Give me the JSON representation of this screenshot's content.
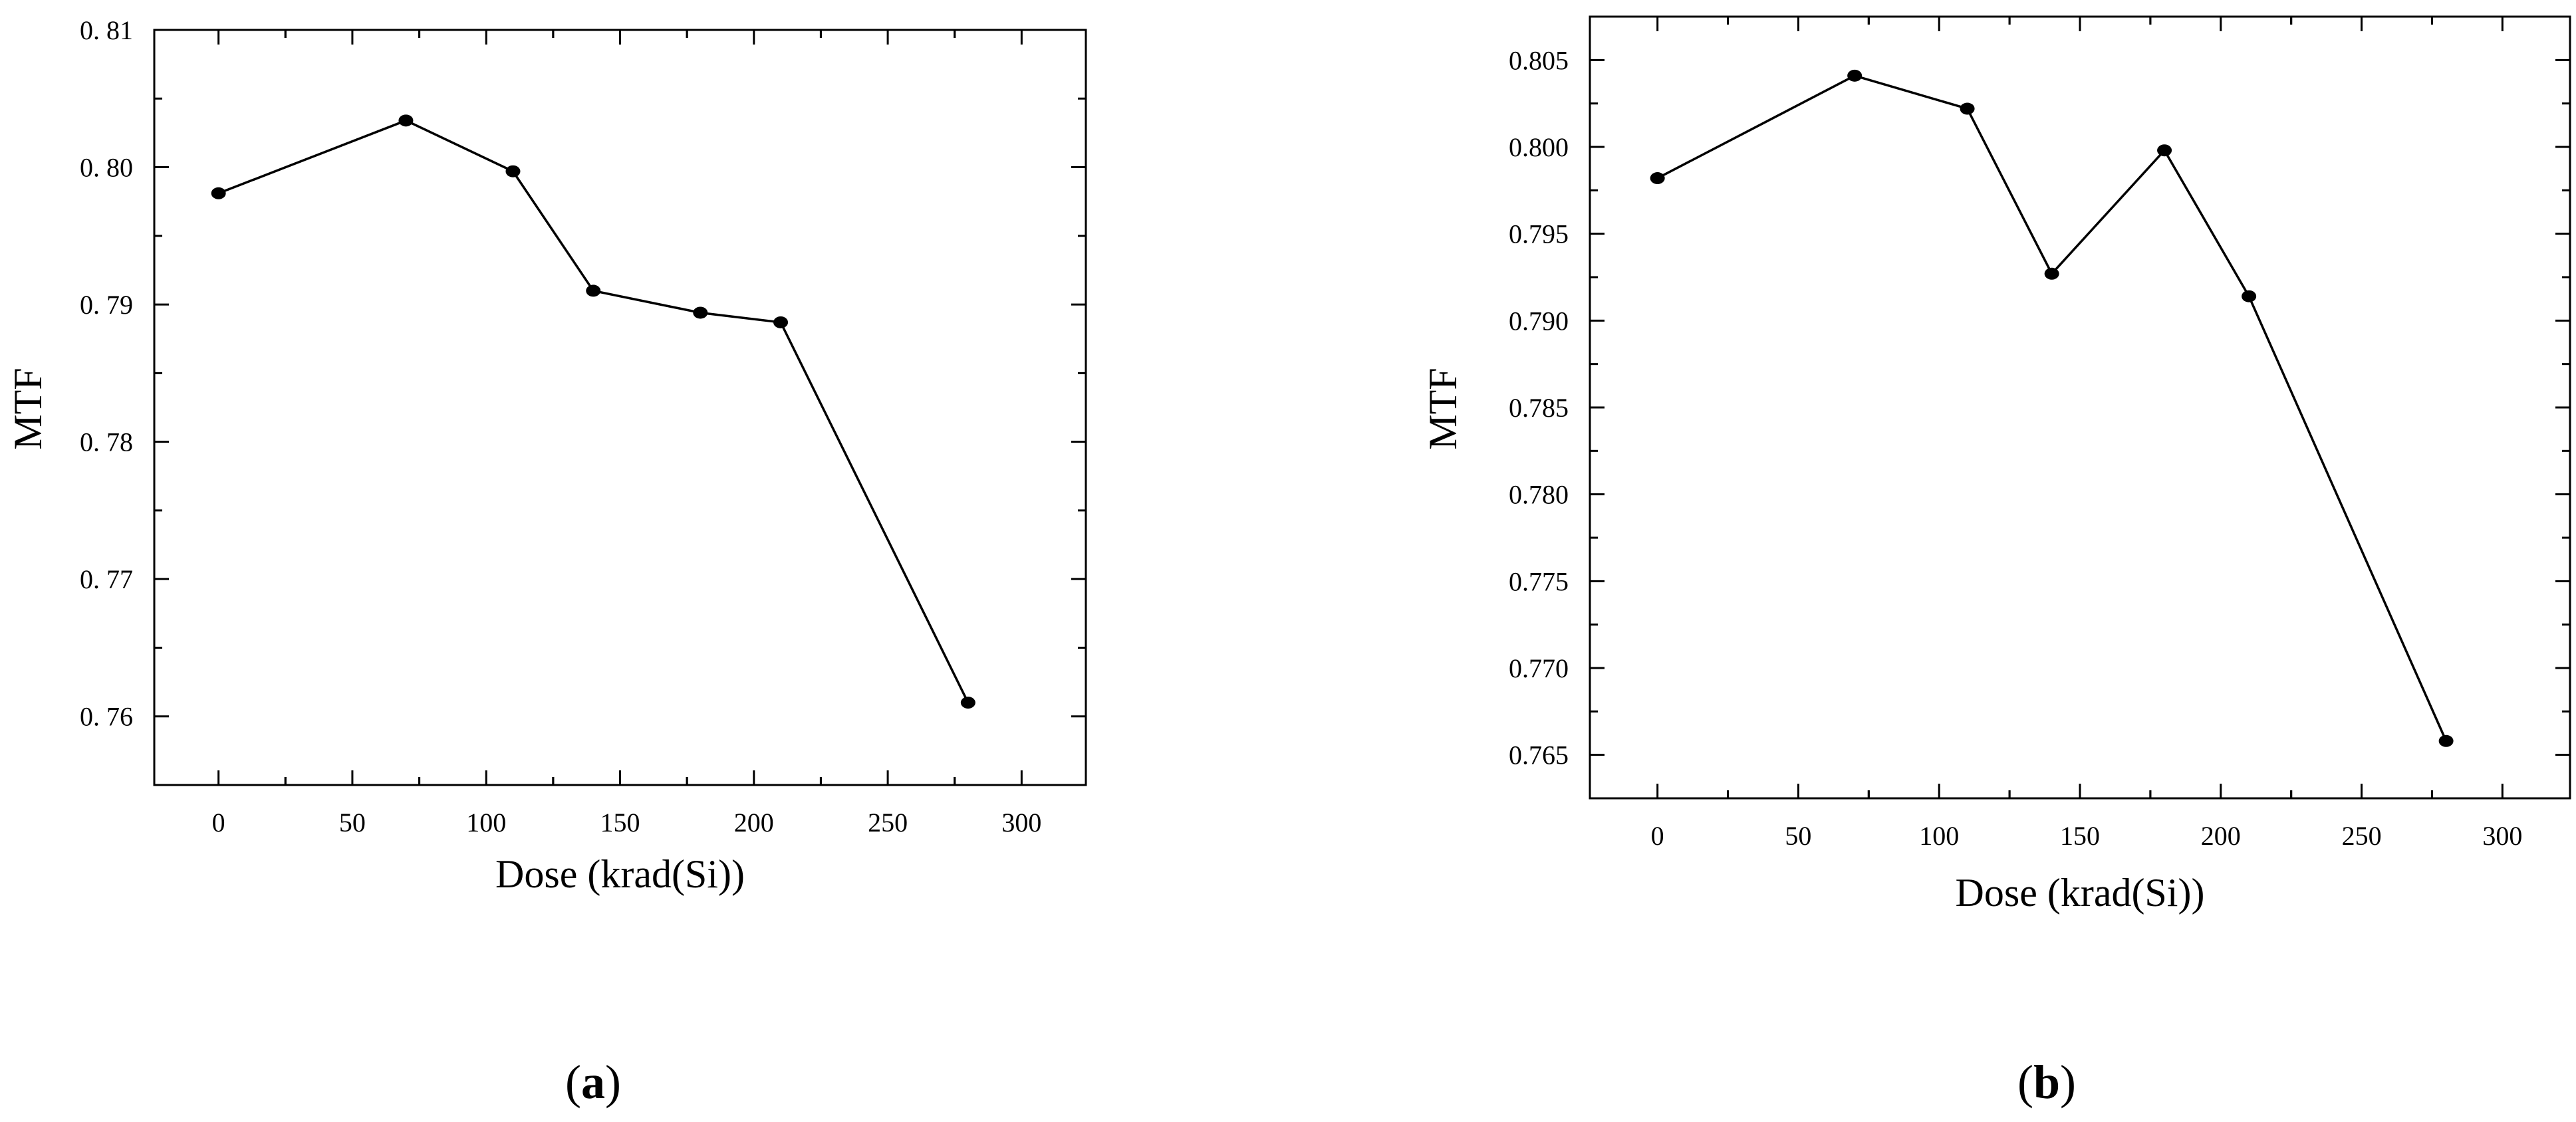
{
  "chart_data": [
    {
      "type": "line",
      "panel_label": "a",
      "x": [
        0,
        70,
        110,
        140,
        180,
        210,
        280
      ],
      "series": [
        {
          "values": [
            0.7981,
            0.8034,
            0.7997,
            0.791,
            0.7894,
            0.7887,
            0.761
          ]
        }
      ],
      "xlabel": "Dose (krad(Si))",
      "ylabel": "MTF",
      "xlim": [
        -24,
        324
      ],
      "ylim": [
        0.755,
        0.81
      ],
      "xticks": [
        0,
        50,
        100,
        150,
        200,
        250,
        300
      ],
      "xtick_labels": [
        "0",
        "50",
        "100",
        "150",
        "200",
        "250",
        "300"
      ],
      "yticks": [
        0.76,
        0.77,
        0.78,
        0.79,
        0.8,
        0.81
      ],
      "ytick_labels": [
        "0. 76",
        "0. 77",
        "0. 78",
        "0. 79",
        "0. 80",
        "0. 81"
      ],
      "grid": false,
      "line_color": "#000000",
      "marker_color": "#000000"
    },
    {
      "type": "line",
      "panel_label": "b",
      "x": [
        0,
        70,
        110,
        140,
        180,
        210,
        280
      ],
      "series": [
        {
          "values": [
            0.7982,
            0.8041,
            0.8022,
            0.7927,
            0.7998,
            0.7914,
            0.7658
          ]
        }
      ],
      "xlabel": "Dose (krad(Si))",
      "ylabel": "MTF",
      "xlim": [
        -24,
        324
      ],
      "ylim": [
        0.7625,
        0.8075
      ],
      "xticks": [
        0,
        50,
        100,
        150,
        200,
        250,
        300
      ],
      "xtick_labels": [
        "0",
        "50",
        "100",
        "150",
        "200",
        "250",
        "300"
      ],
      "yticks": [
        0.765,
        0.77,
        0.775,
        0.78,
        0.785,
        0.79,
        0.795,
        0.8,
        0.805
      ],
      "ytick_labels": [
        "0.765",
        "0.770",
        "0.775",
        "0.780",
        "0.785",
        "0.790",
        "0.795",
        "0.800",
        "0.805"
      ],
      "grid": false,
      "line_color": "#000000",
      "marker_color": "#000000"
    }
  ]
}
